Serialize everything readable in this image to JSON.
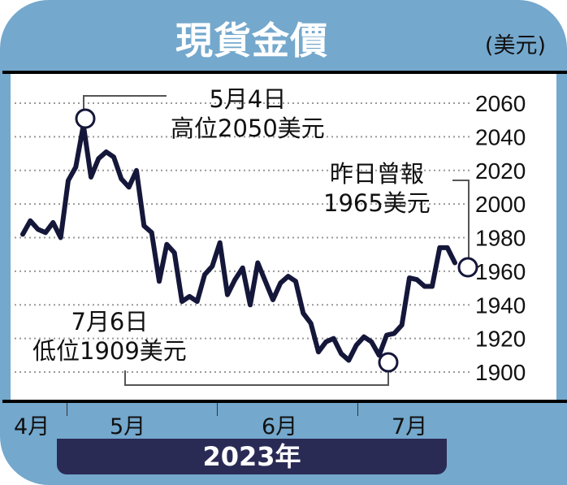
{
  "header": {
    "title": "現貨金價",
    "unit": "(美元)"
  },
  "x_axis": {
    "months": [
      "4月",
      "5月",
      "6月",
      "7月"
    ],
    "year": "2023年"
  },
  "annotations": {
    "high": {
      "line1": "5月4日",
      "line2": "高位2050美元"
    },
    "low": {
      "line1": "7月6日",
      "line2": "低位1909美元"
    },
    "latest": {
      "line1": "昨日曾報",
      "line2": "1965美元"
    }
  },
  "y_axis": {
    "ticks": [
      "2060",
      "2040",
      "2020",
      "2000",
      "1980",
      "1960",
      "1940",
      "1920",
      "1900"
    ]
  },
  "colors": {
    "frame": "#74a8cd",
    "line": "#15173a",
    "yearbar": "#2a2b55"
  },
  "chart_data": {
    "type": "line",
    "title": "現貨金價",
    "ylabel": "(美元)",
    "xlabel": "2023年",
    "ylim": [
      1900,
      2060
    ],
    "yticks": [
      1900,
      1920,
      1940,
      1960,
      1980,
      2000,
      2020,
      2040,
      2060
    ],
    "xticks": [
      "4月",
      "5月",
      "6月",
      "7月"
    ],
    "grid": "horizontal dotted",
    "series": [
      {
        "name": "現貨金價",
        "values": [
          1982,
          1990,
          1985,
          1983,
          1989,
          1980,
          2014,
          2022,
          2047,
          2016,
          2027,
          2031,
          2028,
          2015,
          2010,
          2020,
          1987,
          1983,
          1954,
          1976,
          1971,
          1942,
          1945,
          1942,
          1958,
          1963,
          1977,
          1946,
          1955,
          1962,
          1940,
          1965,
          1954,
          1943,
          1953,
          1957,
          1954,
          1935,
          1929,
          1912,
          1918,
          1920,
          1911,
          1907,
          1916,
          1921,
          1918,
          1910,
          1922,
          1923,
          1928,
          1956,
          1955,
          1951,
          1951,
          1974,
          1974,
          1965
        ]
      }
    ],
    "annotations": [
      {
        "label": "5月4日 高位2050美元",
        "value": 2050
      },
      {
        "label": "7月6日 低位1909美元",
        "value": 1909
      },
      {
        "label": "昨日曾報 1965美元",
        "value": 1965
      }
    ]
  }
}
